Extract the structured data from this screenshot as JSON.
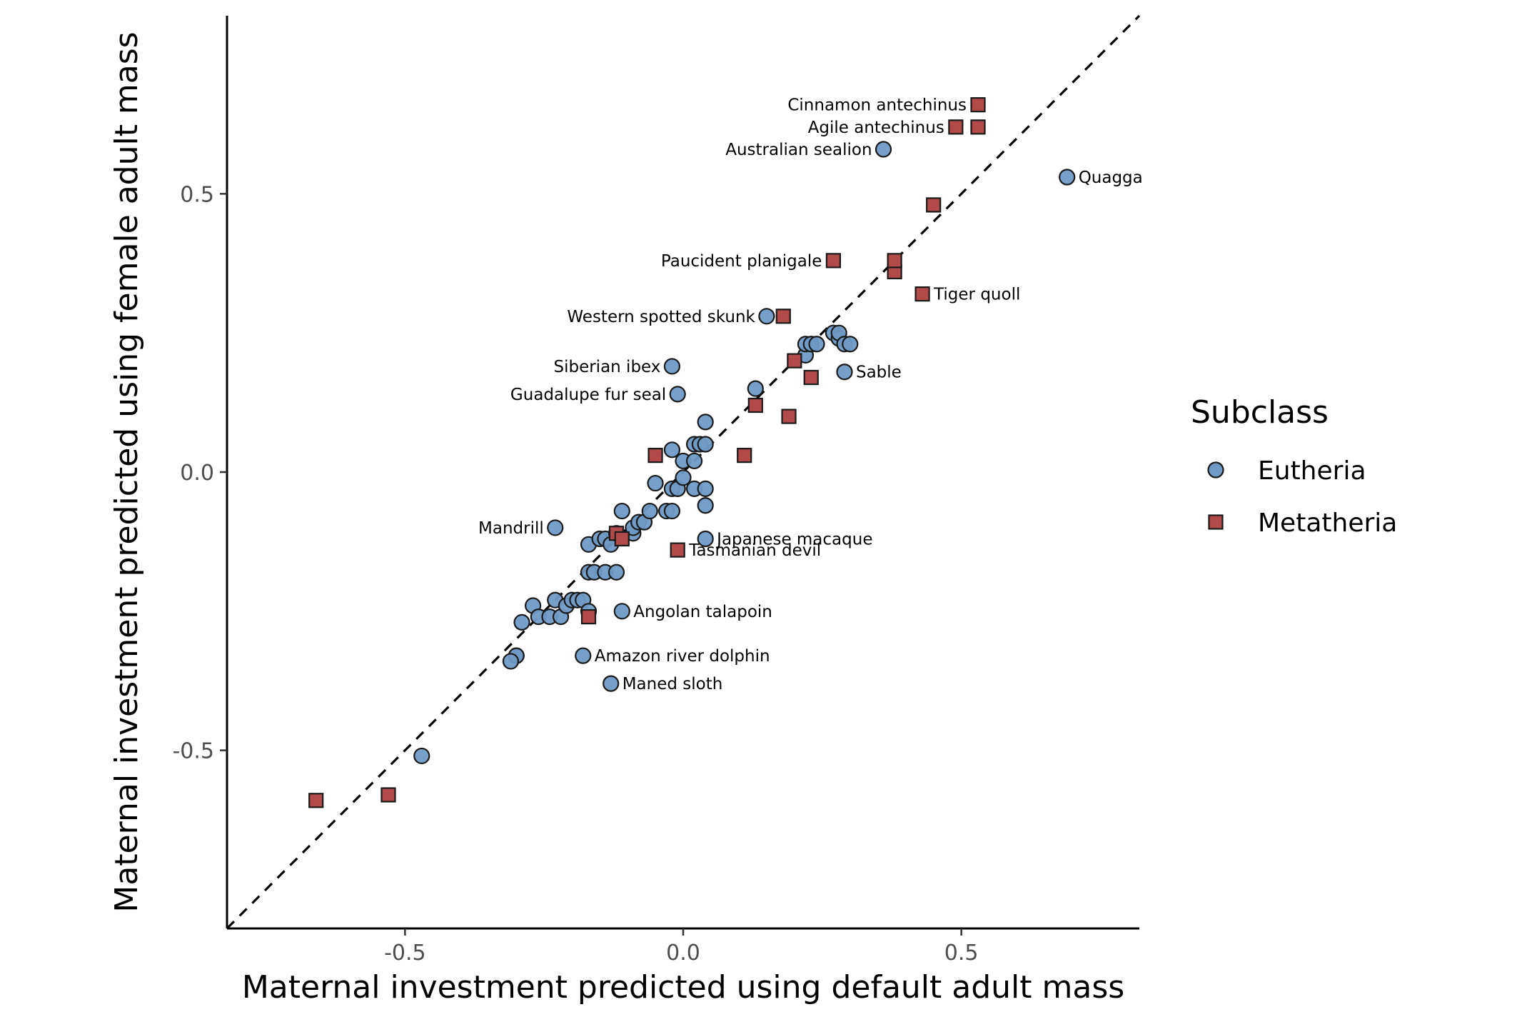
{
  "chart_data": {
    "type": "scatter",
    "xlabel": "Maternal investment predicted using default adult mass",
    "ylabel": "Maternal investment predicted using female adult mass",
    "xlim": [
      -0.82,
      0.82
    ],
    "ylim": [
      -0.82,
      0.82
    ],
    "x_ticks": [
      -0.5,
      0.0,
      0.5
    ],
    "y_ticks": [
      -0.5,
      0.0,
      0.5
    ],
    "x_tick_labels": [
      "-0.5",
      "0.0",
      "0.5"
    ],
    "y_tick_labels": [
      "-0.5",
      "0.0",
      "0.5"
    ],
    "reference_line": "y = x (dashed)",
    "grid": false,
    "legend": {
      "title": "Subclass",
      "position": "right",
      "entries": [
        {
          "label": "Eutheria",
          "shape": "circle",
          "color": "#6f9ac6"
        },
        {
          "label": "Metatheria",
          "shape": "square",
          "color": "#b24a4a"
        }
      ]
    },
    "series": [
      {
        "name": "Eutheria",
        "shape": "circle",
        "color": "#6f9ac6",
        "points": [
          [
            -0.47,
            -0.51
          ],
          [
            -0.3,
            -0.33
          ],
          [
            -0.3,
            -0.33
          ],
          [
            -0.31,
            -0.34
          ],
          [
            -0.29,
            -0.27
          ],
          [
            -0.27,
            -0.24
          ],
          [
            -0.26,
            -0.26
          ],
          [
            -0.24,
            -0.26
          ],
          [
            -0.23,
            -0.23
          ],
          [
            -0.22,
            -0.26
          ],
          [
            -0.21,
            -0.24
          ],
          [
            -0.2,
            -0.23
          ],
          [
            -0.19,
            -0.23
          ],
          [
            -0.18,
            -0.23
          ],
          [
            -0.17,
            -0.25
          ],
          [
            -0.17,
            -0.18
          ],
          [
            -0.16,
            -0.18
          ],
          [
            -0.14,
            -0.18
          ],
          [
            -0.12,
            -0.18
          ],
          [
            -0.17,
            -0.13
          ],
          [
            -0.15,
            -0.12
          ],
          [
            -0.14,
            -0.12
          ],
          [
            -0.13,
            -0.13
          ],
          [
            -0.12,
            -0.11
          ],
          [
            -0.11,
            -0.07
          ],
          [
            -0.09,
            -0.11
          ],
          [
            -0.09,
            -0.1
          ],
          [
            -0.08,
            -0.09
          ],
          [
            -0.07,
            -0.09
          ],
          [
            -0.06,
            -0.07
          ],
          [
            -0.05,
            -0.02
          ],
          [
            -0.03,
            -0.07
          ],
          [
            -0.02,
            -0.07
          ],
          [
            -0.02,
            -0.03
          ],
          [
            -0.01,
            -0.03
          ],
          [
            0.0,
            -0.01
          ],
          [
            0.0,
            0.02
          ],
          [
            0.02,
            -0.03
          ],
          [
            0.02,
            0.02
          ],
          [
            0.02,
            0.05
          ],
          [
            0.03,
            0.05
          ],
          [
            0.04,
            0.05
          ],
          [
            0.04,
            0.09
          ],
          [
            0.04,
            -0.03
          ],
          [
            0.04,
            -0.06
          ],
          [
            -0.02,
            0.04
          ],
          [
            0.13,
            0.15
          ],
          [
            0.22,
            0.21
          ],
          [
            0.22,
            0.23
          ],
          [
            0.23,
            0.23
          ],
          [
            0.24,
            0.23
          ],
          [
            0.27,
            0.25
          ],
          [
            0.28,
            0.24
          ],
          [
            0.28,
            0.25
          ],
          [
            0.29,
            0.23
          ],
          [
            0.3,
            0.23
          ],
          [
            -0.23,
            -0.1
          ],
          [
            0.04,
            -0.12
          ],
          [
            -0.11,
            -0.25
          ],
          [
            -0.18,
            -0.33
          ],
          [
            -0.13,
            -0.38
          ],
          [
            0.15,
            0.28
          ],
          [
            -0.02,
            0.19
          ],
          [
            -0.01,
            0.14
          ],
          [
            0.29,
            0.18
          ],
          [
            0.36,
            0.58
          ],
          [
            0.69,
            0.53
          ]
        ]
      },
      {
        "name": "Metatheria",
        "shape": "square",
        "color": "#b24a4a",
        "points": [
          [
            -0.66,
            -0.59
          ],
          [
            -0.53,
            -0.58
          ],
          [
            -0.17,
            -0.26
          ],
          [
            -0.12,
            -0.11
          ],
          [
            -0.11,
            -0.12
          ],
          [
            -0.05,
            0.03
          ],
          [
            0.11,
            0.03
          ],
          [
            0.13,
            0.12
          ],
          [
            0.18,
            0.28
          ],
          [
            0.19,
            0.1
          ],
          [
            0.2,
            0.2
          ],
          [
            0.23,
            0.17
          ],
          [
            0.45,
            0.48
          ],
          [
            0.38,
            0.36
          ],
          [
            0.38,
            0.38
          ],
          [
            0.49,
            0.62
          ],
          [
            0.53,
            0.62
          ],
          [
            -0.01,
            -0.14
          ],
          [
            0.27,
            0.38
          ],
          [
            0.43,
            0.32
          ],
          [
            0.53,
            0.66
          ]
        ]
      }
    ],
    "annotations": [
      {
        "text": "Cinnamon antechinus",
        "x": 0.53,
        "y": 0.66,
        "side": "left"
      },
      {
        "text": "Agile antechinus",
        "x": 0.49,
        "y": 0.62,
        "side": "left"
      },
      {
        "text": "Australian sealion",
        "x": 0.36,
        "y": 0.58,
        "side": "left"
      },
      {
        "text": "Quagga",
        "x": 0.69,
        "y": 0.53,
        "side": "right"
      },
      {
        "text": "Paucident planigale",
        "x": 0.27,
        "y": 0.38,
        "side": "left"
      },
      {
        "text": "Tiger quoll",
        "x": 0.43,
        "y": 0.32,
        "side": "right"
      },
      {
        "text": "Western spotted skunk",
        "x": 0.15,
        "y": 0.28,
        "side": "left"
      },
      {
        "text": "Siberian ibex",
        "x": -0.02,
        "y": 0.19,
        "side": "left"
      },
      {
        "text": "Sable",
        "x": 0.29,
        "y": 0.18,
        "side": "right"
      },
      {
        "text": "Guadalupe fur seal",
        "x": -0.01,
        "y": 0.14,
        "side": "left"
      },
      {
        "text": "Mandrill",
        "x": -0.23,
        "y": -0.1,
        "side": "left"
      },
      {
        "text": "Japanese macaque",
        "x": 0.04,
        "y": -0.12,
        "side": "right"
      },
      {
        "text": "Tasmanian devil",
        "x": -0.01,
        "y": -0.14,
        "side": "right"
      },
      {
        "text": "Angolan talapoin",
        "x": -0.11,
        "y": -0.25,
        "side": "right"
      },
      {
        "text": "Amazon river dolphin",
        "x": -0.18,
        "y": -0.33,
        "side": "right"
      },
      {
        "text": "Maned sloth",
        "x": -0.13,
        "y": -0.38,
        "side": "right"
      }
    ]
  }
}
